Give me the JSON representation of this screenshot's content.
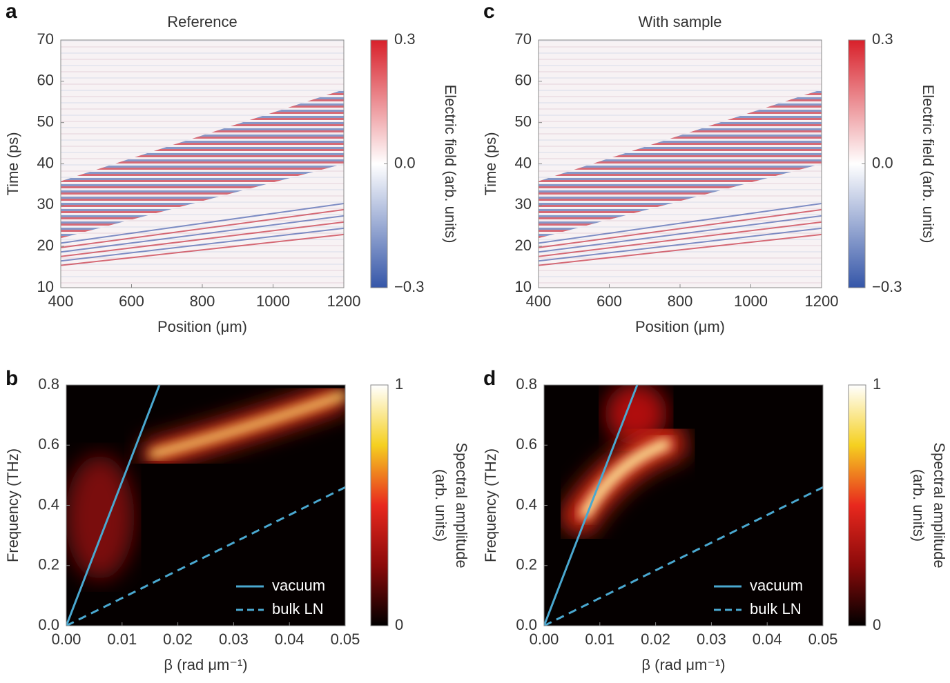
{
  "chart_data": [
    {
      "type": "heatmap",
      "panel": "a",
      "title": "Reference",
      "xlabel": "Position (μm)",
      "ylabel": "Time (ps)",
      "xlim": [
        400,
        1200
      ],
      "ylim": [
        10,
        70
      ],
      "xticks": [
        400,
        600,
        800,
        1000,
        1200
      ],
      "yticks": [
        10,
        20,
        30,
        40,
        50,
        60,
        70
      ],
      "colorbar": {
        "label": [
          "Electric field (arb. units)"
        ],
        "lim": [
          -0.3,
          0.3
        ],
        "ticks": [
          {
            "value": -0.3,
            "label": "−0.3"
          },
          {
            "value": 0,
            "label": "0.0"
          },
          0.3
        ],
        "colormap": [
          "#3556a8",
          "#ffffff",
          "#d8202a"
        ]
      }
    },
    {
      "type": "heatmap",
      "panel": "c",
      "title": "With sample",
      "xlabel": "Position (μm)",
      "ylabel": "Time (ps)",
      "xlim": [
        400,
        1200
      ],
      "ylim": [
        10,
        70
      ],
      "xticks": [
        400,
        600,
        800,
        1000,
        1200
      ],
      "yticks": [
        10,
        20,
        30,
        40,
        50,
        60,
        70
      ],
      "colorbar": {
        "label": [
          "Electric field (arb. units)"
        ],
        "lim": [
          -0.3,
          0.3
        ],
        "ticks": [
          {
            "value": -0.3,
            "label": "−0.3"
          },
          {
            "value": 0,
            "label": "0.0"
          },
          0.3
        ],
        "colormap": [
          "#3556a8",
          "#ffffff",
          "#d8202a"
        ]
      }
    },
    {
      "type": "heatmap",
      "panel": "b",
      "xlabel": "β (rad μm⁻¹)",
      "ylabel": "Frequency (THz)",
      "xlim": [
        0,
        0.05
      ],
      "ylim": [
        0,
        0.8
      ],
      "xticks": [
        {
          "value": 0,
          "label": "0.00"
        },
        0.01,
        0.02,
        0.03,
        0.04,
        0.05
      ],
      "yticks": [
        {
          "value": 0,
          "label": "0.0"
        },
        0.2,
        0.4,
        0.6,
        0.8
      ],
      "legend": "lower right",
      "series": [
        {
          "name": "vacuum",
          "color": "#4aa8d0",
          "linestyle": "solid",
          "x": [
            0,
            0.0167
          ],
          "values": [
            0,
            0.8
          ]
        },
        {
          "name": "bulk LN",
          "color": "#4aa8d0",
          "linestyle": "dashed",
          "x": [
            0,
            0.05
          ],
          "values": [
            0,
            0.46
          ]
        }
      ],
      "colorbar": {
        "label": [
          "Spectral amplitude",
          "(arb. units)"
        ],
        "lim": [
          0,
          1
        ],
        "ticks": [
          0,
          1
        ],
        "colormap": [
          "#000000",
          "#8b0a0a",
          "#e8281e",
          "#f5d020",
          "#ffffff"
        ]
      }
    },
    {
      "type": "heatmap",
      "panel": "d",
      "xlabel": "β (rad μm⁻¹)",
      "ylabel": "Frequency (THz)",
      "xlim": [
        0,
        0.05
      ],
      "ylim": [
        0,
        0.8
      ],
      "xticks": [
        {
          "value": 0,
          "label": "0.00"
        },
        0.01,
        0.02,
        0.03,
        0.04,
        0.05
      ],
      "yticks": [
        {
          "value": 0,
          "label": "0.0"
        },
        0.2,
        0.4,
        0.6,
        0.8
      ],
      "legend": "lower right",
      "series": [
        {
          "name": "vacuum",
          "color": "#4aa8d0",
          "linestyle": "solid",
          "x": [
            0,
            0.0167
          ],
          "values": [
            0,
            0.8
          ]
        },
        {
          "name": "bulk LN",
          "color": "#4aa8d0",
          "linestyle": "dashed",
          "x": [
            0,
            0.05
          ],
          "values": [
            0,
            0.46
          ]
        }
      ],
      "colorbar": {
        "label": [
          "Spectral amplitude",
          "(arb. units)"
        ],
        "lim": [
          0,
          1
        ],
        "ticks": [
          0,
          1
        ],
        "colormap": [
          "#000000",
          "#8b0a0a",
          "#e8281e",
          "#f5d020",
          "#ffffff"
        ]
      }
    }
  ]
}
